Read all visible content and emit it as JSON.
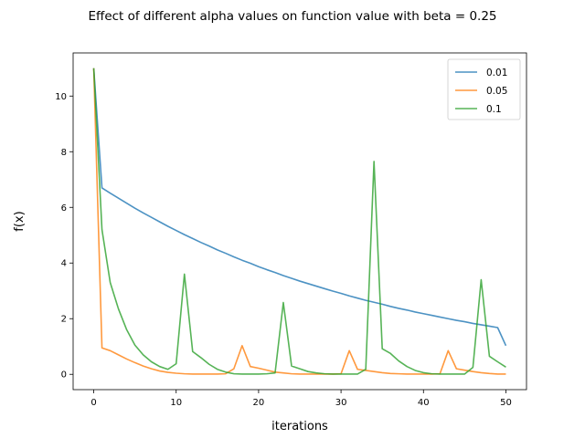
{
  "chart_data": {
    "type": "line",
    "title": "Effect of different alpha values on function value with beta = 0.25",
    "xlabel": "iterations",
    "ylabel": "f(x)",
    "xlim": [
      -2.5,
      52.5
    ],
    "ylim": [
      -0.55,
      11.55
    ],
    "xticks": [
      0,
      10,
      20,
      30,
      40,
      50
    ],
    "yticks": [
      0,
      2,
      4,
      6,
      8,
      10
    ],
    "grid": false,
    "legend_position": "top-right",
    "series": [
      {
        "name": "0.01",
        "color": "#1f77b4",
        "x": [
          0,
          1,
          2,
          3,
          4,
          5,
          6,
          7,
          8,
          9,
          10,
          11,
          12,
          13,
          14,
          15,
          16,
          17,
          18,
          19,
          20,
          21,
          22,
          23,
          24,
          25,
          26,
          27,
          28,
          29,
          30,
          31,
          32,
          33,
          34,
          35,
          36,
          37,
          38,
          39,
          40,
          41,
          42,
          43,
          44,
          45,
          46,
          47,
          48,
          49,
          50
        ],
        "y": [
          11.0,
          6.7,
          6.51,
          6.33,
          6.15,
          5.97,
          5.8,
          5.64,
          5.48,
          5.32,
          5.17,
          5.02,
          4.88,
          4.74,
          4.61,
          4.47,
          4.35,
          4.22,
          4.1,
          3.99,
          3.87,
          3.76,
          3.66,
          3.55,
          3.45,
          3.35,
          3.26,
          3.17,
          3.08,
          2.99,
          2.91,
          2.82,
          2.74,
          2.66,
          2.59,
          2.52,
          2.44,
          2.37,
          2.31,
          2.24,
          2.18,
          2.12,
          2.06,
          2.0,
          1.94,
          1.89,
          1.83,
          1.78,
          1.73,
          1.68,
          1.03
        ]
      },
      {
        "name": "0.05",
        "color": "#ff7f0e",
        "x": [
          0,
          1,
          2,
          3,
          4,
          5,
          6,
          7,
          8,
          9,
          10,
          11,
          12,
          13,
          14,
          15,
          16,
          17,
          18,
          19,
          20,
          21,
          22,
          23,
          24,
          25,
          26,
          27,
          28,
          29,
          30,
          31,
          32,
          33,
          34,
          35,
          36,
          37,
          38,
          39,
          40,
          41,
          42,
          43,
          44,
          45,
          46,
          47,
          48,
          49,
          50
        ],
        "y": [
          11.0,
          0.95,
          0.85,
          0.7,
          0.55,
          0.42,
          0.3,
          0.2,
          0.12,
          0.07,
          0.04,
          0.02,
          0.01,
          0.01,
          0.01,
          0.01,
          0.02,
          0.2,
          1.03,
          0.28,
          0.22,
          0.15,
          0.08,
          0.05,
          0.02,
          0.01,
          0.01,
          0.01,
          0.01,
          0.01,
          0.02,
          0.85,
          0.18,
          0.14,
          0.1,
          0.06,
          0.03,
          0.02,
          0.01,
          0.01,
          0.01,
          0.01,
          0.02,
          0.85,
          0.2,
          0.15,
          0.1,
          0.06,
          0.03,
          0.01,
          0.01
        ]
      },
      {
        "name": "0.1",
        "color": "#2ca02c",
        "x": [
          0,
          1,
          2,
          3,
          4,
          5,
          6,
          7,
          8,
          9,
          10,
          11,
          12,
          13,
          14,
          15,
          16,
          17,
          18,
          19,
          20,
          21,
          22,
          23,
          24,
          25,
          26,
          27,
          28,
          29,
          30,
          31,
          32,
          33,
          34,
          35,
          36,
          37,
          38,
          39,
          40,
          41,
          42,
          43,
          44,
          45,
          46,
          47,
          48,
          49,
          50
        ],
        "y": [
          11.0,
          5.2,
          3.3,
          2.35,
          1.6,
          1.05,
          0.7,
          0.45,
          0.28,
          0.18,
          0.38,
          3.6,
          0.82,
          0.6,
          0.36,
          0.18,
          0.08,
          0.02,
          0.01,
          0.01,
          0.01,
          0.02,
          0.05,
          2.58,
          0.3,
          0.2,
          0.1,
          0.05,
          0.02,
          0.01,
          0.01,
          0.01,
          0.01,
          0.18,
          7.65,
          0.92,
          0.75,
          0.48,
          0.28,
          0.14,
          0.06,
          0.02,
          0.01,
          0.01,
          0.01,
          0.01,
          0.25,
          3.4,
          0.65,
          0.45,
          0.26
        ]
      }
    ]
  }
}
